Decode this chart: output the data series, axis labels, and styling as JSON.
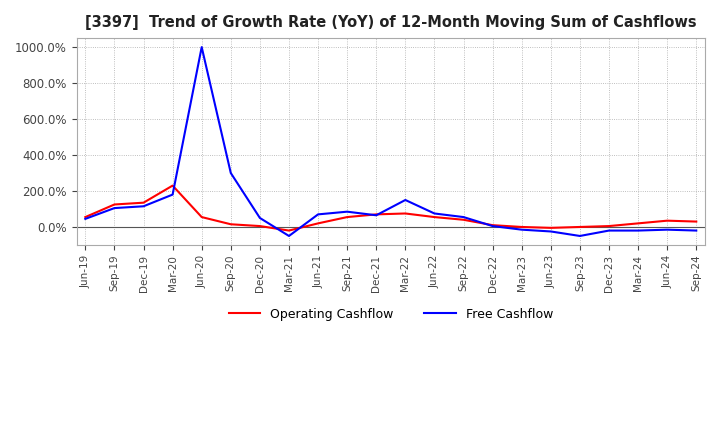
{
  "title": "[3397]  Trend of Growth Rate (YoY) of 12-Month Moving Sum of Cashflows",
  "background_color": "#ffffff",
  "grid_color": "#aaaaaa",
  "operating_color": "#ff0000",
  "free_color": "#0000ff",
  "ylim": [
    -100,
    1050
  ],
  "yticks": [
    0,
    200,
    400,
    600,
    800,
    1000
  ],
  "x_labels": [
    "Jun-19",
    "Sep-19",
    "Dec-19",
    "Mar-20",
    "Jun-20",
    "Sep-20",
    "Dec-20",
    "Mar-21",
    "Jun-21",
    "Sep-21",
    "Dec-21",
    "Mar-22",
    "Jun-22",
    "Sep-22",
    "Dec-22",
    "Mar-23",
    "Jun-23",
    "Sep-23",
    "Dec-23",
    "Mar-24",
    "Jun-24",
    "Sep-24"
  ],
  "operating_cashflow": [
    55,
    125,
    135,
    230,
    55,
    15,
    5,
    -20,
    20,
    55,
    70,
    75,
    55,
    40,
    10,
    0,
    -5,
    0,
    5,
    20,
    35,
    30
  ],
  "free_cashflow": [
    45,
    105,
    115,
    180,
    1000,
    300,
    50,
    -50,
    70,
    85,
    65,
    150,
    75,
    55,
    5,
    -15,
    -25,
    -50,
    -20,
    -20,
    -15,
    -20
  ]
}
